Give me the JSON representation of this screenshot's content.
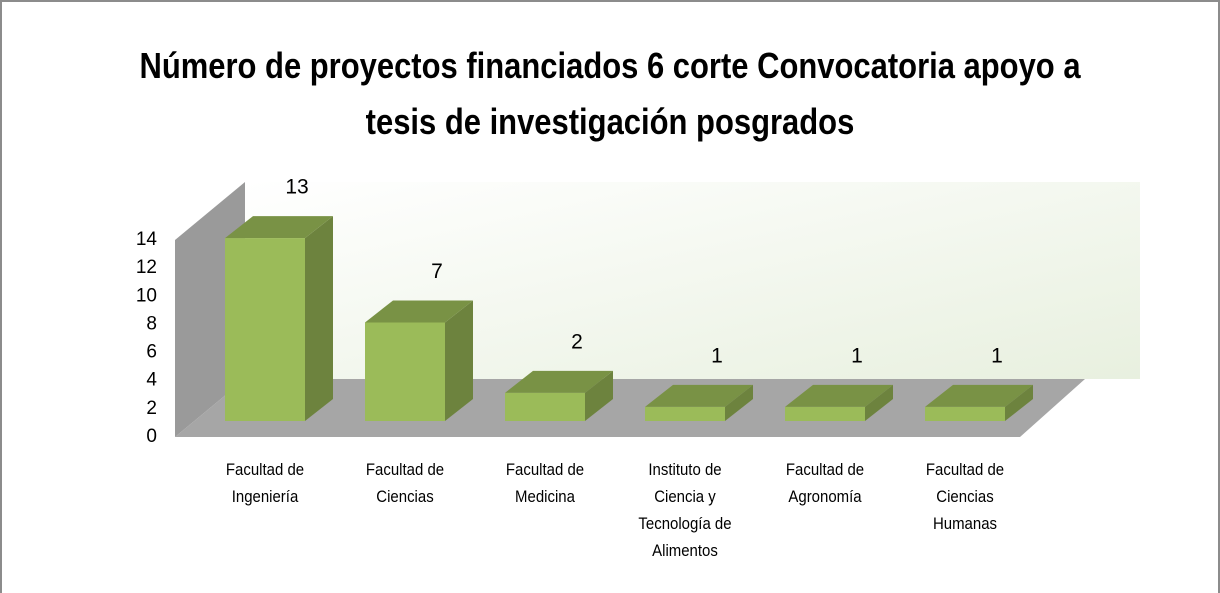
{
  "chart_data": {
    "type": "bar3d",
    "title": "Número de proyectos financiados 6 corte Convocatoria apoyo a tesis de investigación posgrados",
    "categories": [
      "Facultad de Ingeniería",
      "Facultad de Ciencias",
      "Facultad de Medicina",
      "Instituto de Ciencia y Tecnología de Alimentos",
      "Facultad de Agronomía",
      "Facultad de Ciencias Humanas"
    ],
    "values": [
      13,
      7,
      2,
      1,
      1,
      1
    ],
    "color": "#9bbb59",
    "ylim": [
      0,
      14
    ],
    "yticks": [
      0,
      2,
      4,
      6,
      8,
      10,
      12,
      14
    ],
    "grid": false
  }
}
